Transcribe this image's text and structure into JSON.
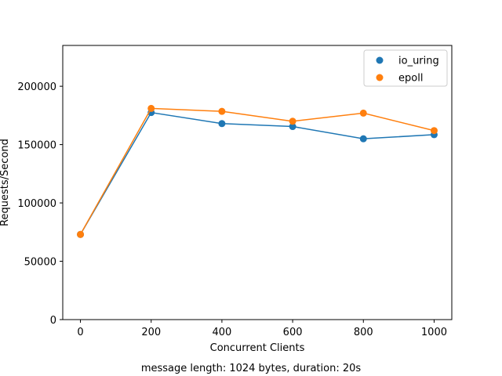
{
  "chart_data": {
    "type": "line",
    "x": [
      0,
      200,
      400,
      600,
      800,
      1000
    ],
    "series": [
      {
        "name": "io_uring",
        "color": "#1f77b4",
        "values": [
          73000,
          177500,
          168000,
          165500,
          155000,
          158500
        ]
      },
      {
        "name": "epoll",
        "color": "#ff7f0e",
        "values": [
          73000,
          181000,
          178500,
          170000,
          177000,
          162000
        ]
      }
    ],
    "xlabel": "Concurrent Clients",
    "ylabel": "Requests/Second",
    "xlim": [
      -50,
      1050
    ],
    "ylim": [
      0,
      235000
    ],
    "xticks": [
      0,
      200,
      400,
      600,
      800,
      1000
    ],
    "yticks": [
      0,
      50000,
      100000,
      150000,
      200000
    ],
    "grid": false,
    "legend_position": "top-right",
    "caption": "message length: 1024 bytes, duration: 20s"
  }
}
